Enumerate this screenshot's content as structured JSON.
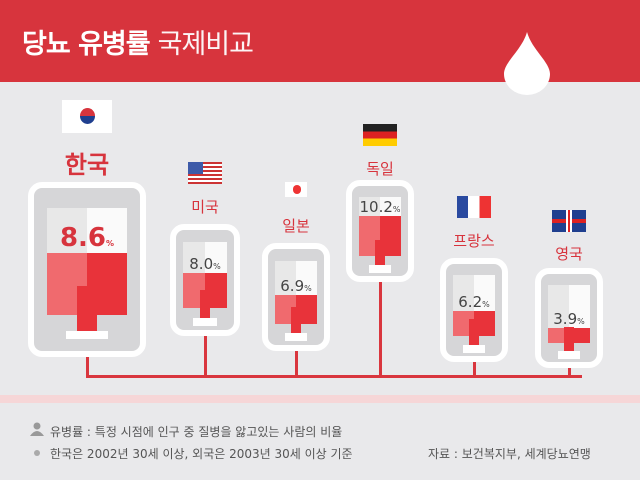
{
  "header": {
    "title": "당뇨 유병률",
    "subtitle": "국제비교"
  },
  "colors": {
    "accent": "#d7343d",
    "fill": "#e8333a"
  },
  "chart_data": {
    "type": "bar",
    "title": "당뇨 유병률 국제비교",
    "categories": [
      "한국",
      "미국",
      "일본",
      "독일",
      "프랑스",
      "영국"
    ],
    "values": [
      8.6,
      8.0,
      6.9,
      10.2,
      6.2,
      3.9
    ],
    "unit": "%",
    "value_labels": [
      "8.6",
      "8.0",
      "6.9",
      "10.2",
      "6.2",
      "3.9"
    ]
  },
  "footnotes": {
    "definition": "유병률 : 특정 시점에 인구 중 질병을 앓고있는 사람의 비율",
    "basis": "한국은 2002년 30세 이상, 외국은 2003년 30세 이상 기준",
    "source": "자료 : 보건복지부, 세계당뇨연맹"
  }
}
